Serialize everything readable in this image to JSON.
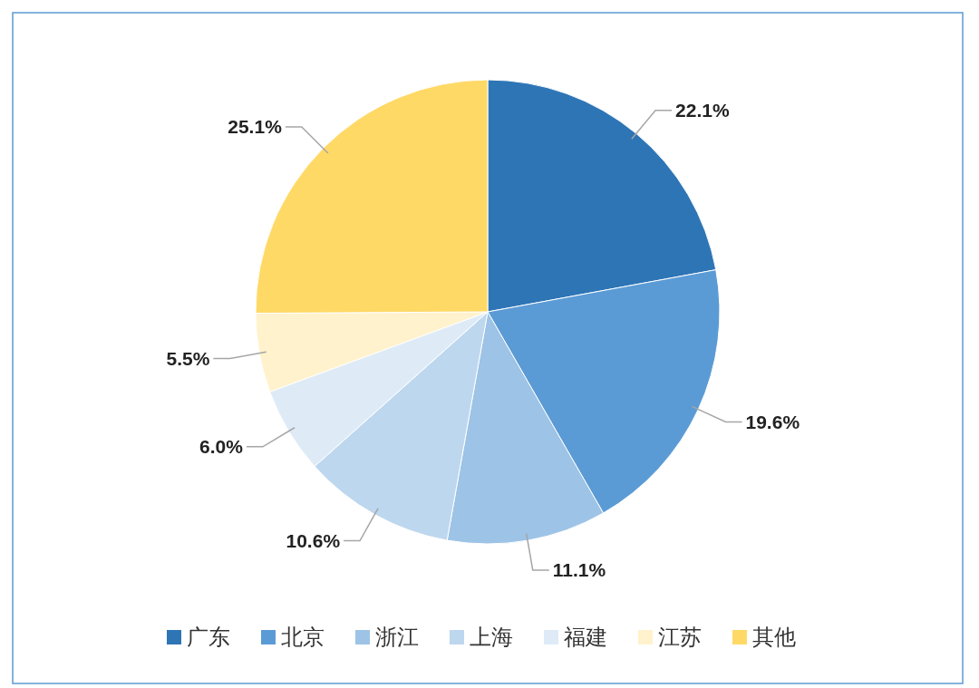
{
  "chart_data": {
    "type": "pie",
    "categories": [
      "广东",
      "北京",
      "浙江",
      "上海",
      "福建",
      "江苏",
      "其他"
    ],
    "values": [
      22.1,
      19.6,
      11.1,
      10.6,
      6.0,
      5.5,
      25.1
    ],
    "value_labels": [
      "22.1%",
      "19.6%",
      "11.1%",
      "10.6%",
      "6.0%",
      "5.5%",
      "25.1%"
    ],
    "colors": [
      "#2e75b6",
      "#5b9bd5",
      "#9dc3e6",
      "#bdd7ee",
      "#deebf7",
      "#fff2cc",
      "#ffd966"
    ],
    "legend": "bottom"
  }
}
